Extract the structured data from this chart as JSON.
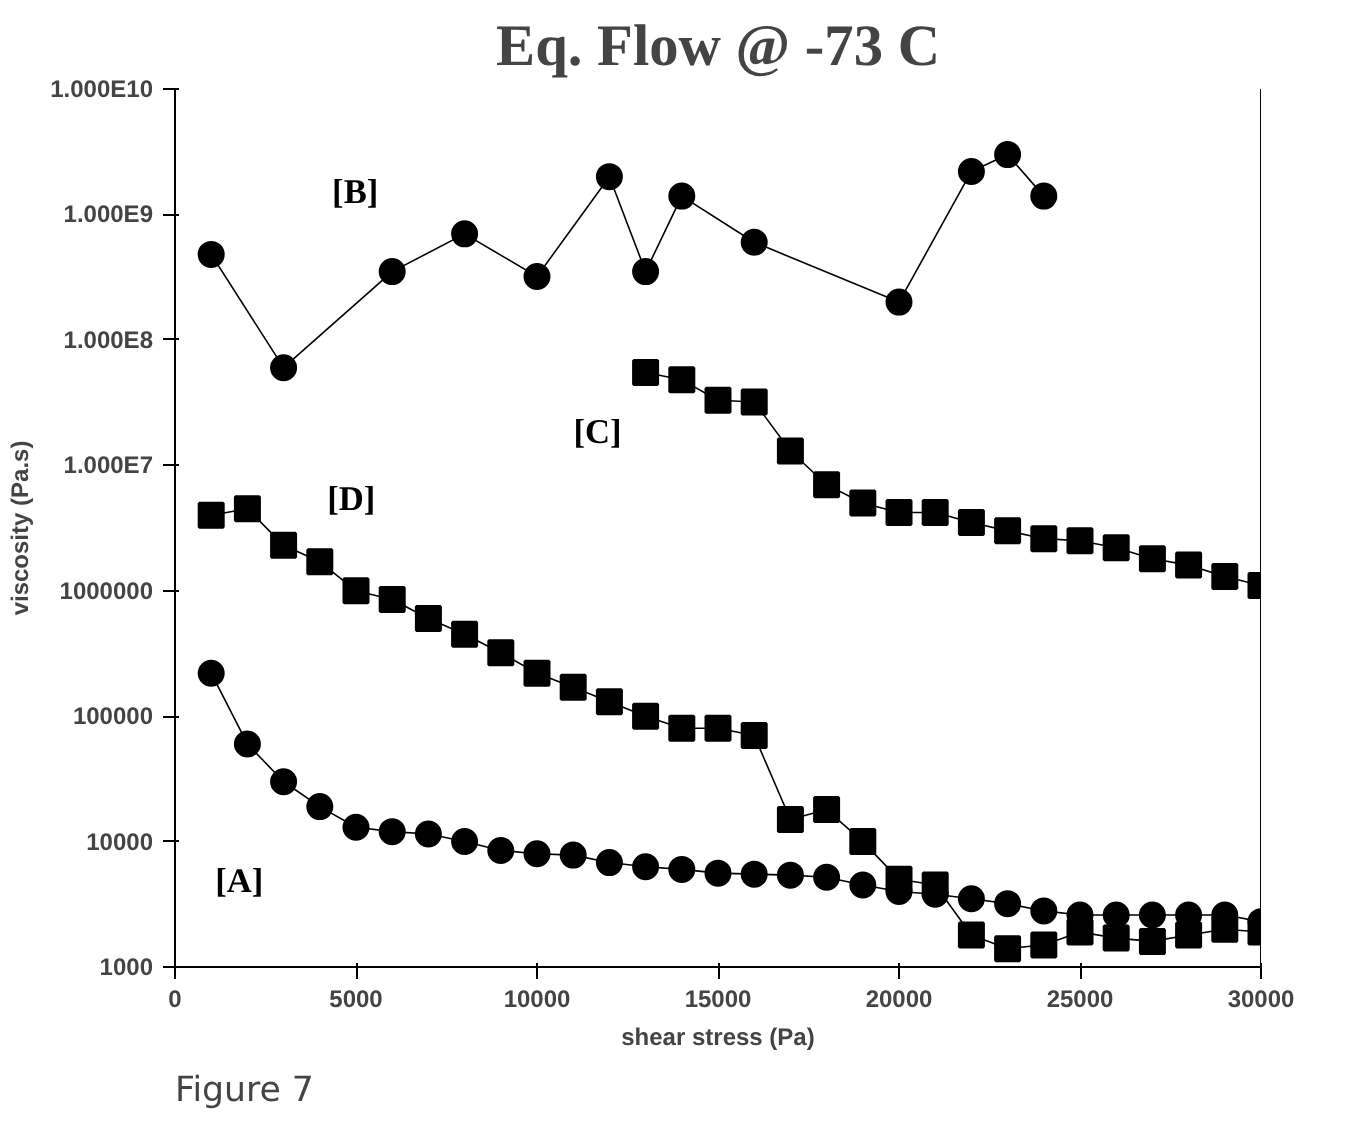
{
  "chart_data": {
    "type": "line",
    "title": "Eq. Flow @ -73 C",
    "xlabel": "shear stress (Pa)",
    "ylabel": "viscosity (Pa.s)",
    "log": "y",
    "grid": false,
    "line_style": "solid",
    "xlim": [
      0,
      30000
    ],
    "xticks": [
      0,
      5000,
      10000,
      15000,
      20000,
      25000,
      30000
    ],
    "ylim": [
      1000,
      10000000000
    ],
    "yticks": [
      {
        "value": 1000,
        "label": "1000"
      },
      {
        "value": 10000,
        "label": "10000"
      },
      {
        "value": 100000,
        "label": "100000"
      },
      {
        "value": 1000000,
        "label": "1000000"
      },
      {
        "value": 10000000,
        "label": "1.000E7"
      },
      {
        "value": 100000000,
        "label": "1.000E8"
      },
      {
        "value": 1000000000,
        "label": "1.000E9"
      },
      {
        "value": 10000000000,
        "label": "1.000E10"
      }
    ],
    "series": [
      {
        "name": "[B]",
        "color": "#000000",
        "marker": "circle",
        "x": [
          1000,
          3000,
          6000,
          8000,
          10000,
          12000,
          13000,
          14000,
          16000,
          20000,
          22000,
          23000,
          24000
        ],
        "values": [
          480000000,
          60000000,
          350000000,
          700000000,
          320000000,
          2000000000,
          350000000,
          1400000000,
          600000000,
          200000000,
          2200000000,
          3000000000,
          1400000000
        ]
      },
      {
        "name": "[C]",
        "color": "#000000",
        "marker": "square",
        "x": [
          13000,
          14000,
          15000,
          16000,
          17000,
          18000,
          19000,
          20000,
          21000,
          22000,
          23000,
          24000,
          25000,
          26000,
          27000,
          28000,
          29000,
          30000
        ],
        "values": [
          55000000,
          48000000,
          33000000,
          32000000,
          13000000,
          7000000,
          5000000,
          4200000,
          4200000,
          3500000,
          3000000,
          2600000,
          2500000,
          2200000,
          1800000,
          1600000,
          1300000,
          1100000
        ]
      },
      {
        "name": "[D]",
        "color": "#000000",
        "marker": "square",
        "x": [
          1000,
          2000,
          3000,
          4000,
          5000,
          6000,
          7000,
          8000,
          9000,
          10000,
          11000,
          12000,
          13000,
          14000,
          15000,
          16000,
          17000,
          18000,
          19000,
          20000,
          21000,
          22000,
          23000,
          24000,
          25000,
          26000,
          27000,
          28000,
          29000,
          30000
        ],
        "values": [
          4000000,
          4500000,
          2300000,
          1700000,
          1000000,
          850000,
          600000,
          450000,
          320000,
          220000,
          170000,
          130000,
          100000,
          80000,
          80000,
          70000,
          15000,
          18000,
          10000,
          5000,
          4500,
          1800,
          1400,
          1500,
          1900,
          1700,
          1600,
          1800,
          2000,
          1900
        ]
      },
      {
        "name": "[A]",
        "color": "#000000",
        "marker": "circle",
        "x": [
          1000,
          2000,
          3000,
          4000,
          5000,
          6000,
          7000,
          8000,
          9000,
          10000,
          11000,
          12000,
          13000,
          14000,
          15000,
          16000,
          17000,
          18000,
          19000,
          20000,
          21000,
          22000,
          23000,
          24000,
          25000,
          26000,
          27000,
          28000,
          29000,
          30000
        ],
        "values": [
          220000,
          60000,
          30000,
          19000,
          13000,
          12000,
          11500,
          10000,
          8500,
          8000,
          7800,
          6800,
          6300,
          6000,
          5600,
          5500,
          5400,
          5200,
          4500,
          4000,
          3800,
          3500,
          3200,
          2800,
          2600,
          2600,
          2600,
          2600,
          2600,
          2300
        ]
      }
    ],
    "annotations": [
      "Figure 7"
    ]
  }
}
